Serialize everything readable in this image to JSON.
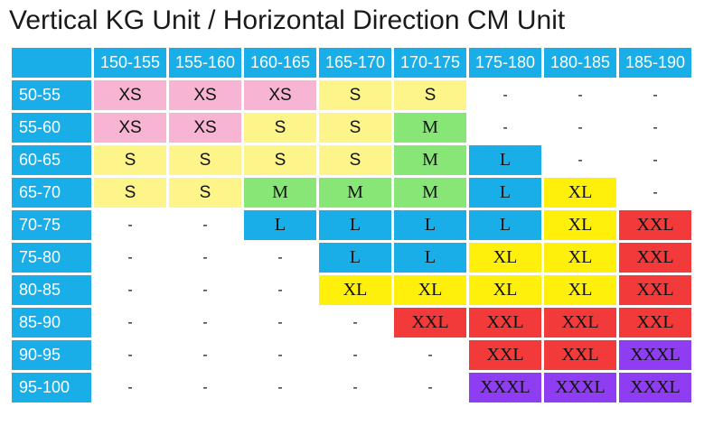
{
  "title": "Vertical KG Unit / Horizontal Direction CM Unit",
  "colors": {
    "header": "#19aee8",
    "XS": "#f7b4d3",
    "S": "#fdf58a",
    "M": "#88e676",
    "L": "#19aee8",
    "XL": "#fef00a",
    "XXL": "#f33a3a",
    "XXXL": "#8e3df3",
    "-": "#ffffff"
  },
  "columns": [
    "150-155",
    "155-160",
    "160-165",
    "165-170",
    "170-175",
    "175-180",
    "180-185",
    "185-190"
  ],
  "rows": [
    {
      "label": "50-55",
      "cells": [
        "XS",
        "XS",
        "XS",
        "S",
        "S",
        "-",
        "-",
        "-"
      ]
    },
    {
      "label": "55-60",
      "cells": [
        "XS",
        "XS",
        "S",
        "S",
        "M",
        "-",
        "-",
        "-"
      ]
    },
    {
      "label": "60-65",
      "cells": [
        "S",
        "S",
        "S",
        "S",
        "M",
        "L",
        "-",
        "-"
      ]
    },
    {
      "label": "65-70",
      "cells": [
        "S",
        "S",
        "M",
        "M",
        "M",
        "L",
        "XL",
        "-"
      ]
    },
    {
      "label": "70-75",
      "cells": [
        "-",
        "-",
        "L",
        "L",
        "L",
        "L",
        "XL",
        "XXL"
      ]
    },
    {
      "label": "75-80",
      "cells": [
        "-",
        "-",
        "-",
        "L",
        "L",
        "XL",
        "XL",
        "XXL"
      ]
    },
    {
      "label": "80-85",
      "cells": [
        "-",
        "-",
        "-",
        "XL",
        "XL",
        "XL",
        "XL",
        "XXL"
      ]
    },
    {
      "label": "85-90",
      "cells": [
        "-",
        "-",
        "-",
        "-",
        "XXL",
        "XXL",
        "XXL",
        "XXL"
      ]
    },
    {
      "label": "90-95",
      "cells": [
        "-",
        "-",
        "-",
        "-",
        "-",
        "XXL",
        "XXL",
        "XXXL"
      ]
    },
    {
      "label": "95-100",
      "cells": [
        "-",
        "-",
        "-",
        "-",
        "-",
        "XXXL",
        "XXXL",
        "XXXL"
      ]
    }
  ]
}
